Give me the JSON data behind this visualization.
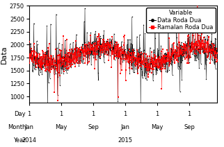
{
  "title": "",
  "ylabel": "Data",
  "ylim": [
    875,
    2750
  ],
  "yticks": [
    1000,
    1250,
    1500,
    1750,
    2000,
    2250,
    2500,
    2750
  ],
  "legend_title": "Variable",
  "legend_labels": [
    "Data Roda Dua",
    "Ramalan Roda Dua"
  ],
  "legend_colors": [
    "black",
    "red"
  ],
  "legend_markers": [
    "o",
    "s"
  ],
  "background_color": "#ffffff",
  "n_points": 730,
  "seed": 42,
  "base_level": 1800,
  "amplitude": 150,
  "noise_scale": 150,
  "spike_scale": 450,
  "tick_fontsize": 6,
  "label_fontsize": 8,
  "legend_fontsize": 6
}
